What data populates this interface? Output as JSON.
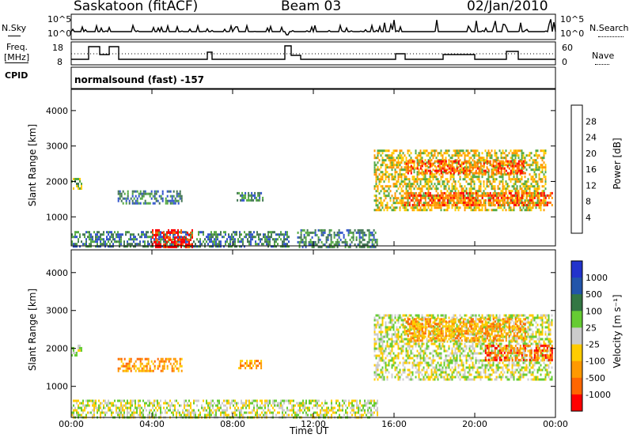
{
  "header": {
    "station": "Saskatoon (fitACF)",
    "beam": "Beam 03",
    "date": "02/Jan/2010"
  },
  "top_panel": {
    "left_label": "N.Sky",
    "left_ticks": [
      "10^5",
      "10^0"
    ],
    "right_label": "N.Search",
    "right_ticks": [
      "10^5",
      "10^0"
    ]
  },
  "freq_panel": {
    "left_label_1": "Freq.",
    "left_label_2": "[MHz]",
    "left_ticks": [
      "18",
      "8"
    ],
    "right_label": "Nave",
    "right_ticks": [
      "60",
      "0"
    ]
  },
  "cpid": {
    "label": "CPID",
    "value": "normalsound (fast) -157"
  },
  "colors": {
    "power_scale": [
      "#0000ff",
      "#3355cc",
      "#447755",
      "#55aa44",
      "#ffcc00",
      "#ff9900",
      "#ff6600",
      "#ff0000"
    ],
    "velocity_scale": [
      "#2233cc",
      "#2255aa",
      "#337744",
      "#66cc33",
      "#cccccc",
      "#ffcc00",
      "#ff9900",
      "#ff6600",
      "#ff0000"
    ]
  },
  "chart_data": [
    {
      "type": "heatmap",
      "title": "",
      "xlabel": "Time UT",
      "ylabel": "Slant Range [km]",
      "x_ticks": [
        "00:00",
        "04:00",
        "08:00",
        "12:00",
        "16:00",
        "20:00",
        "00:00"
      ],
      "xlim_hours": [
        0,
        24
      ],
      "y_ticks": [
        1000,
        2000,
        3000,
        4000
      ],
      "ylim": [
        180,
        4600
      ],
      "colorbar": {
        "label": "Power [dB]",
        "ticks": [
          "4",
          "8",
          "12",
          "16",
          "20",
          "24",
          "28"
        ]
      },
      "regions": [
        {
          "t0": 0.0,
          "t1": 0.5,
          "r0": 1800,
          "r1": 2100,
          "level": 3
        },
        {
          "t0": 2.3,
          "t1": 5.5,
          "r0": 1400,
          "r1": 1750,
          "level": 2
        },
        {
          "t0": 8.2,
          "t1": 9.5,
          "r0": 1450,
          "r1": 1700,
          "level": 2
        },
        {
          "t0": 0.0,
          "t1": 10.8,
          "r0": 180,
          "r1": 600,
          "level": 2
        },
        {
          "t0": 4.0,
          "t1": 6.0,
          "r0": 180,
          "r1": 650,
          "level": 7
        },
        {
          "t0": 11.2,
          "t1": 15.2,
          "r0": 180,
          "r1": 650,
          "level": 2
        },
        {
          "t0": 15.0,
          "t1": 23.5,
          "r0": 1200,
          "r1": 2900,
          "level": 4
        },
        {
          "t0": 16.5,
          "t1": 22.5,
          "r0": 2200,
          "r1": 2600,
          "level": 6
        },
        {
          "t0": 16.5,
          "t1": 23.8,
          "r0": 1300,
          "r1": 1700,
          "level": 6
        }
      ]
    },
    {
      "type": "heatmap",
      "title": "",
      "xlabel": "Time UT",
      "ylabel": "Slant Range [km]",
      "x_ticks": [
        "00:00",
        "04:00",
        "08:00",
        "12:00",
        "16:00",
        "20:00",
        "00:00"
      ],
      "xlim_hours": [
        0,
        24
      ],
      "y_ticks": [
        1000,
        2000,
        3000,
        4000
      ],
      "ylim": [
        180,
        4600
      ],
      "colorbar": {
        "label": "Velocity [m s⁻¹]",
        "ticks": [
          "1000",
          "500",
          "100",
          "25",
          "-25",
          "-100",
          "-500",
          "-1000"
        ]
      },
      "regions": [
        {
          "t0": 0.0,
          "t1": 0.5,
          "r0": 1800,
          "r1": 2100,
          "level": 4
        },
        {
          "t0": 2.3,
          "t1": 5.5,
          "r0": 1400,
          "r1": 1750,
          "level": 6
        },
        {
          "t0": 8.2,
          "t1": 9.5,
          "r0": 1450,
          "r1": 1700,
          "level": 6
        },
        {
          "t0": 0.0,
          "t1": 15.2,
          "r0": 180,
          "r1": 650,
          "level": 4
        },
        {
          "t0": 15.0,
          "t1": 23.8,
          "r0": 1200,
          "r1": 2900,
          "level": 4
        },
        {
          "t0": 16.5,
          "t1": 22.5,
          "r0": 2200,
          "r1": 2800,
          "level": 6
        },
        {
          "t0": 20.5,
          "t1": 23.8,
          "r0": 1700,
          "r1": 2100,
          "level": 7
        }
      ]
    }
  ]
}
